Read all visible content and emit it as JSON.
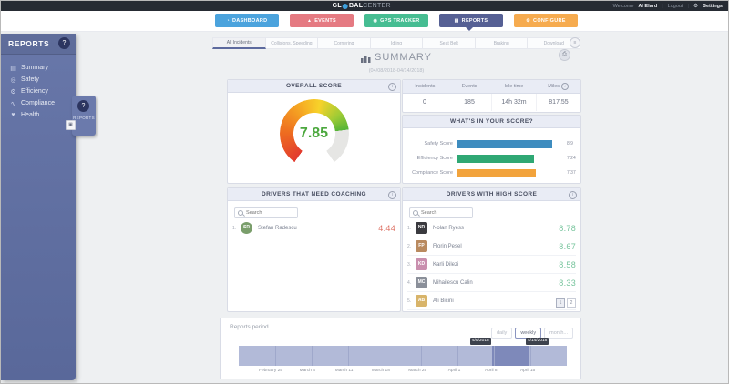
{
  "topbar": {
    "logo_pre": "GL",
    "logo_mid": "BAL",
    "logo_post": "CENTER",
    "welcome": "Welcome",
    "user": "Al Elard",
    "logout": "Logout",
    "settings": "Settings"
  },
  "nav": {
    "items": [
      {
        "id": "dashboard",
        "label": "DASHBOARD",
        "color": "#4ba3dd",
        "icon": "gauge-icon",
        "glyph": "◔"
      },
      {
        "id": "events",
        "label": "EVENTS",
        "color": "#e57a82",
        "icon": "warning-icon",
        "glyph": "▲"
      },
      {
        "id": "gps-tracker",
        "label": "GPS TRACKER",
        "color": "#46bd92",
        "icon": "pin-icon",
        "glyph": "◉"
      },
      {
        "id": "reports",
        "label": "REPORTS",
        "color": "#566094",
        "icon": "chart-icon",
        "glyph": "▤"
      },
      {
        "id": "configure",
        "label": "CONFIGURE",
        "color": "#f6ab4f",
        "icon": "gear-icon",
        "glyph": "⚙"
      }
    ],
    "active": "reports"
  },
  "sidebar": {
    "title": "REPORTS",
    "items": [
      {
        "label": "Summary",
        "icon": "chart-icon",
        "glyph": "▤"
      },
      {
        "label": "Safety",
        "icon": "shield-icon",
        "glyph": "◎"
      },
      {
        "label": "Efficiency",
        "icon": "gear-icon",
        "glyph": "⚙"
      },
      {
        "label": "Compliance",
        "icon": "wave-icon",
        "glyph": "∿"
      },
      {
        "label": "Health",
        "icon": "heart-icon",
        "glyph": "♥"
      }
    ],
    "popout_label": "REPORTS"
  },
  "tabs": {
    "active_index": 0,
    "items": [
      "All Incidents",
      "Collisions, Speeding",
      "Cornering",
      "Idling",
      "Seat Belt",
      "Braking",
      "Download"
    ]
  },
  "summary": {
    "title": "SUMMARY",
    "date_range": "(04/08/2018-04/14/2018)"
  },
  "overall": {
    "title": "OVERALL SCORE",
    "value": "7.85",
    "fraction": 0.785
  },
  "stats": {
    "columns": [
      "Incidents",
      "Events",
      "Idle time",
      "Miles"
    ],
    "values": [
      "0",
      "185",
      "14h 32m",
      "817.55"
    ]
  },
  "score_breakdown": {
    "title": "WHAT'S IN YOUR SCORE?"
  },
  "coaching": {
    "title": "DRIVERS THAT NEED COACHING",
    "search_placeholder": "Search",
    "rows": [
      {
        "index": "1.",
        "name": "Stefan Radescu",
        "score": "4.44",
        "avatar_color": "#7a9e6b"
      }
    ]
  },
  "high_score": {
    "title": "DRIVERS WITH HIGH SCORE",
    "search_placeholder": "Search",
    "rows": [
      {
        "index": "1.",
        "name": "Nolan Ryess",
        "score": "8.78",
        "avatar_color": "#3a3a3f"
      },
      {
        "index": "2.",
        "name": "Florin Pesel",
        "score": "8.67",
        "avatar_color": "#b98a5f"
      },
      {
        "index": "3.",
        "name": "Karli Dilezi",
        "score": "8.58",
        "avatar_color": "#c98fae"
      },
      {
        "index": "4.",
        "name": "Mihailescu Calin",
        "score": "8.33",
        "avatar_color": "#8a8f99"
      },
      {
        "index": "5.",
        "name": "Ali Bicini",
        "score": "8",
        "avatar_color": "#d8b46a"
      }
    ],
    "pagination": [
      "1",
      "2"
    ]
  },
  "period": {
    "label": "Reports period",
    "buttons": [
      {
        "label": "daily",
        "active": false
      },
      {
        "label": "weekly",
        "active": true
      },
      {
        "label": "month...",
        "active": false
      }
    ],
    "tooltip_start": "4/8/2018",
    "tooltip_end": "4/14/2018"
  },
  "chart_data": [
    {
      "type": "gauge",
      "title": "OVERALL SCORE",
      "value": 7.85,
      "min": 0,
      "max": 10,
      "value_color": "#4ca83e",
      "arc_colors": [
        "#e23a2e",
        "#ee6c20",
        "#f5a623",
        "#f7d22a",
        "#9ecb35",
        "#55b437"
      ],
      "rest_color": "#e6e6e4"
    },
    {
      "type": "bar",
      "orientation": "horizontal",
      "title": "WHAT'S IN YOUR SCORE?",
      "categories": [
        "Safety Score",
        "Efficiency Score",
        "Compliance Score"
      ],
      "values": [
        8.9,
        7.24,
        7.37
      ],
      "value_labels": [
        "8.9",
        "7.24",
        "7.37"
      ],
      "colors": [
        "#3e8cbf",
        "#2fa874",
        "#f2a33c"
      ],
      "xlim": [
        0,
        10
      ],
      "grid": false,
      "legend": false
    },
    {
      "type": "timeline",
      "title": "Reports period",
      "axis_labels": [
        "February 25",
        "March 4",
        "March 11",
        "March 18",
        "March 25",
        "April 1",
        "April 8",
        "April 15"
      ],
      "selection": {
        "start": "4/8/2018",
        "end": "4/14/2018"
      },
      "bar_color": "#b2bad8",
      "selection_color": "#7e89ba"
    }
  ]
}
